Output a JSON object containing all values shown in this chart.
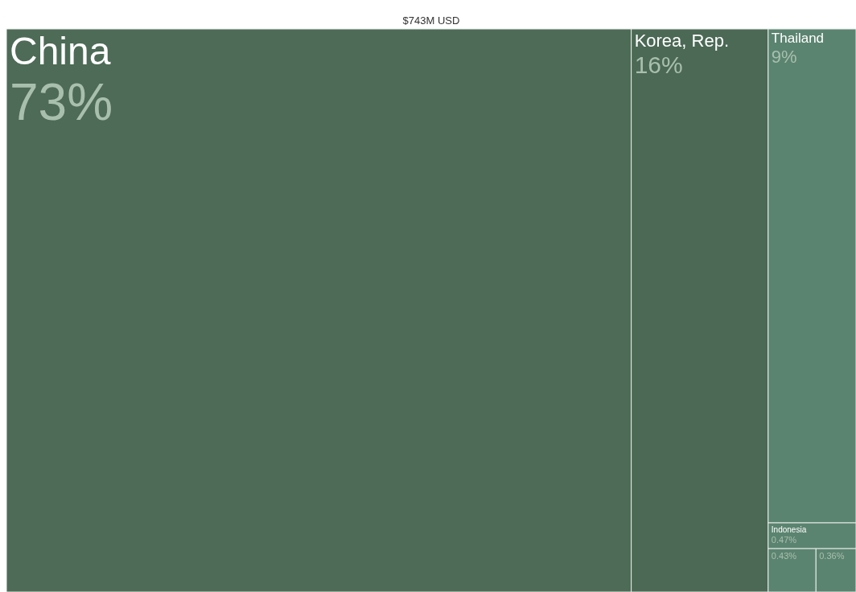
{
  "chart_data": {
    "type": "other",
    "title": "$743M USD",
    "categories": [
      "China",
      "Korea, Rep.",
      "Thailand",
      "Indonesia",
      null,
      null
    ],
    "values": [
      73,
      16,
      9,
      0.47,
      0.43,
      0.36
    ],
    "value_labels": [
      "73%",
      "16%",
      "9%",
      "0.47%",
      "0.43%",
      "0.36%"
    ],
    "colors": [
      "#4d6b56",
      "#4b6955",
      "#5b8470",
      "#5b8470",
      "#5b8470",
      "#5b8470"
    ]
  }
}
